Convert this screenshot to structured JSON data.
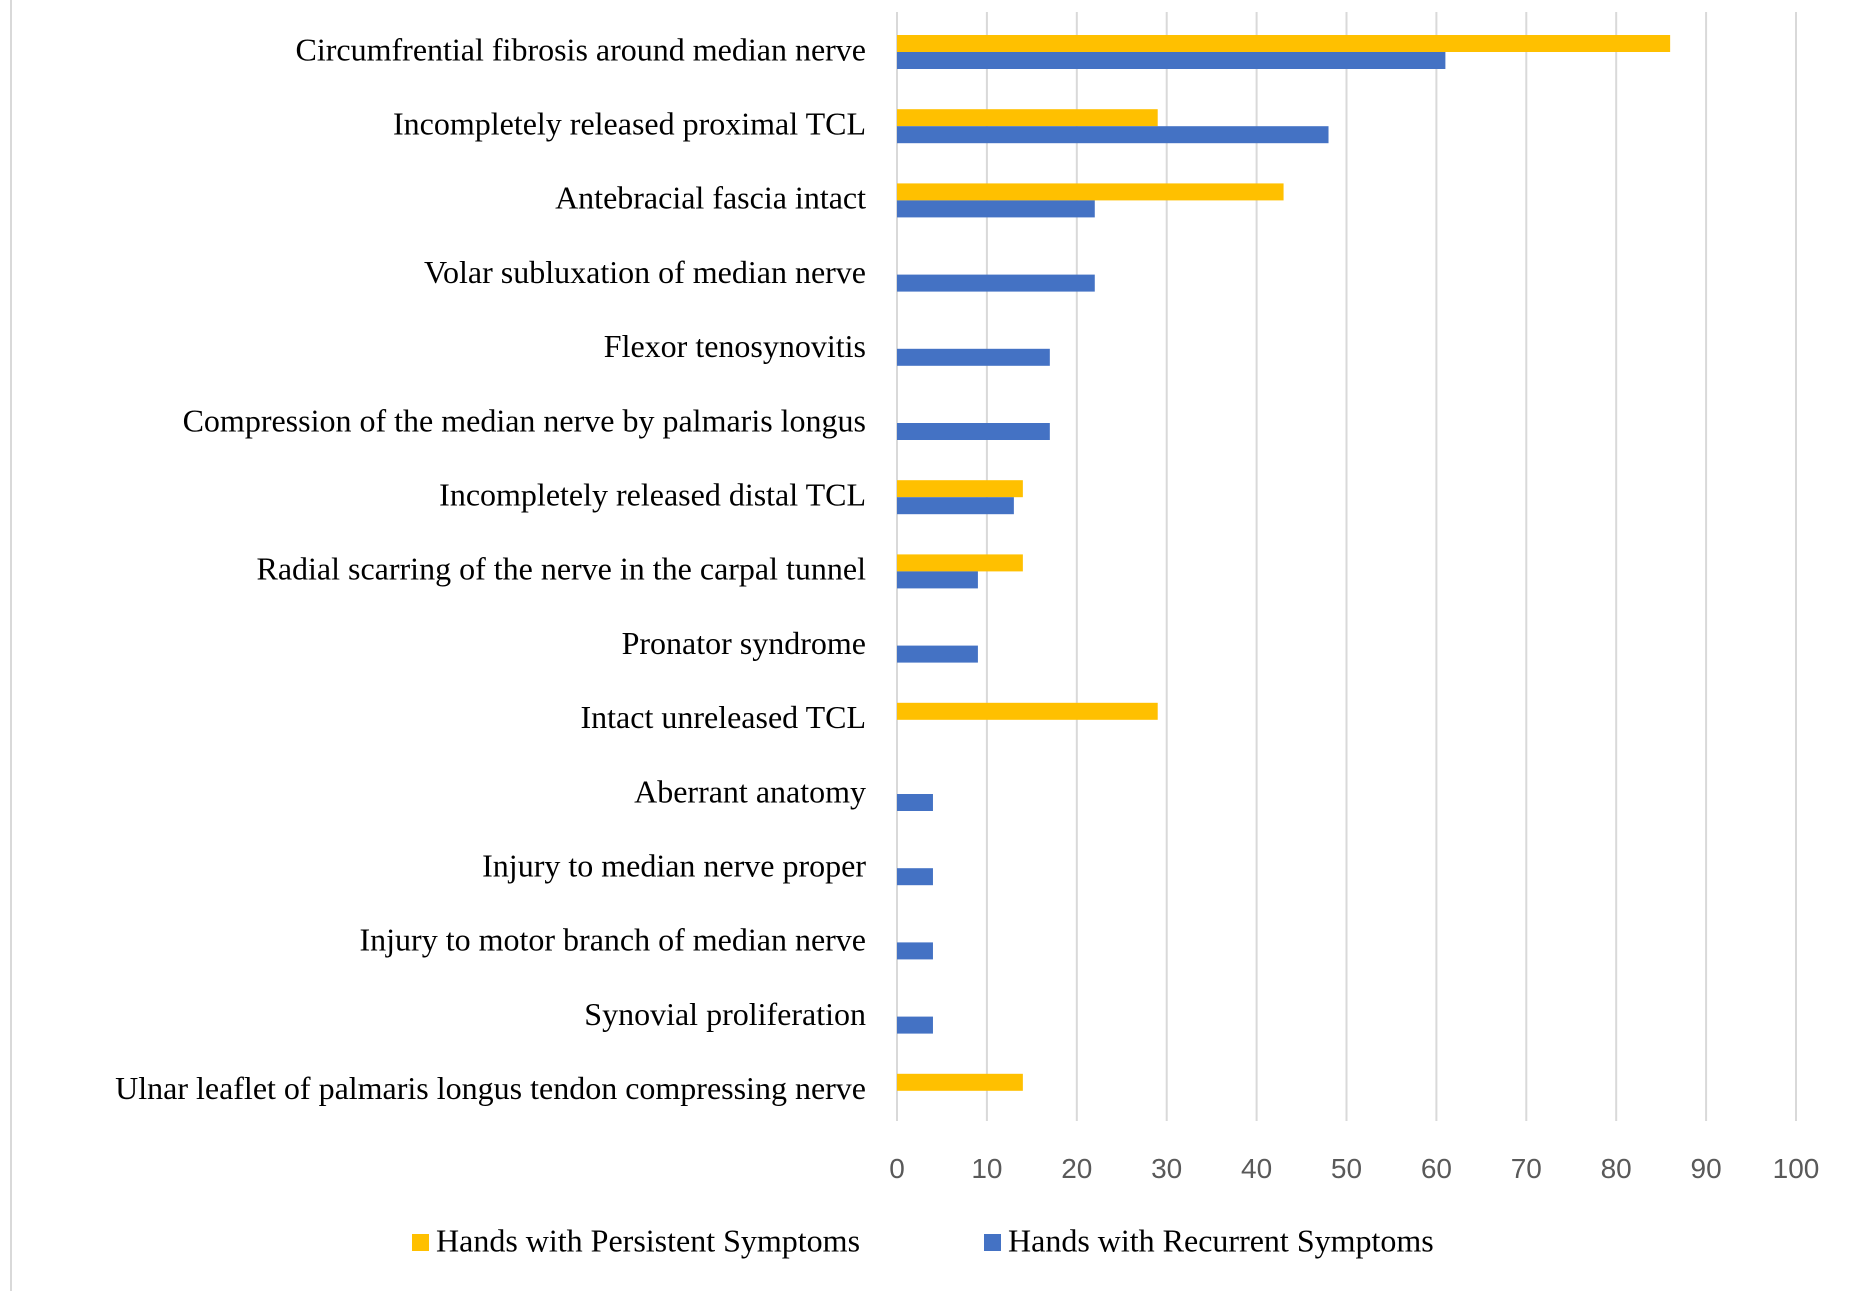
{
  "chart_data": {
    "type": "bar",
    "orientation": "horizontal",
    "categories": [
      "Circumfrential fibrosis around median nerve",
      "Incompletely released proximal TCL",
      "Antebracial fascia intact",
      "Volar subluxation of median nerve",
      "Flexor tenosynovitis",
      "Compression of the median nerve by palmaris longus",
      "Incompletely released distal TCL",
      "Radial scarring of the nerve in the carpal tunnel",
      "Pronator syndrome",
      "Intact unreleased TCL",
      "Aberrant anatomy",
      "Injury to median nerve proper",
      "Injury to motor branch of median nerve",
      "Synovial proliferation",
      "Ulnar leaflet of palmaris longus tendon compressing nerve"
    ],
    "series": [
      {
        "name": "Hands with Persistent Symptoms",
        "color": "#FFC000",
        "values": [
          86,
          29,
          43,
          0,
          0,
          0,
          14,
          14,
          0,
          29,
          0,
          0,
          0,
          0,
          14
        ]
      },
      {
        "name": "Hands with Recurrent Symptoms",
        "color": "#4472C4",
        "values": [
          61,
          48,
          22,
          22,
          17,
          17,
          13,
          9,
          9,
          0,
          4,
          4,
          4,
          4,
          0
        ]
      }
    ],
    "xlim": [
      0,
      100
    ],
    "xticks": [
      "0",
      "10",
      "20",
      "30",
      "40",
      "50",
      "60",
      "70",
      "80",
      "90",
      "100"
    ],
    "grid": "vertical",
    "legend": "bottom",
    "title": "",
    "xlabel": "",
    "ylabel": ""
  }
}
